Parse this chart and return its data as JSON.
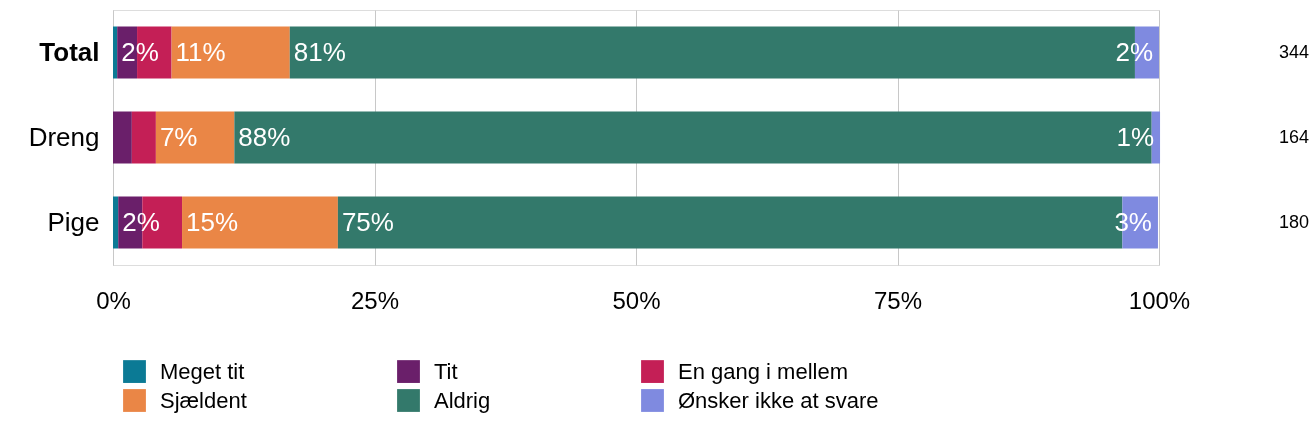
{
  "chart_data": {
    "type": "bar",
    "orientation": "horizontal",
    "stacked": true,
    "categories": [
      "Total",
      "Dreng",
      "Pige"
    ],
    "series": [
      {
        "name": "Meget tit",
        "color": "#0b7a95",
        "values": [
          0.4,
          0,
          0.5
        ],
        "value_labels": [
          null,
          null,
          null
        ]
      },
      {
        "name": "Tit",
        "color": "#6a1f6a",
        "values": [
          1.9,
          1.8,
          2.3
        ],
        "value_labels": [
          "2%",
          null,
          "2%"
        ]
      },
      {
        "name": "En gang i mellem",
        "color": "#c41f56",
        "values": [
          3.3,
          2.3,
          3.8
        ],
        "value_labels": [
          null,
          null,
          null
        ]
      },
      {
        "name": "Sjældent",
        "color": "#ea8646",
        "values": [
          11.3,
          7.5,
          14.9
        ],
        "value_labels": [
          "11%",
          "7%",
          "15%"
        ]
      },
      {
        "name": "Aldrig",
        "color": "#33796b",
        "values": [
          80.8,
          87.7,
          75.0
        ],
        "value_labels": [
          "81%",
          "88%",
          "75%"
        ]
      },
      {
        "name": "Ønsker ikke at svare",
        "color": "#7f8ae0",
        "values": [
          2.3,
          0.8,
          3.4
        ],
        "value_labels": [
          "2%",
          "1%",
          "3%"
        ]
      }
    ],
    "xlim": [
      0,
      100
    ],
    "xticks": [
      {
        "value": 0,
        "label": "0%"
      },
      {
        "value": 25,
        "label": "25%"
      },
      {
        "value": 50,
        "label": "50%"
      },
      {
        "value": 75,
        "label": "75%"
      },
      {
        "value": 100,
        "label": "100%"
      }
    ],
    "grid": "x",
    "legend": "bottom",
    "annotations": [
      "344",
      "164",
      "180"
    ]
  }
}
